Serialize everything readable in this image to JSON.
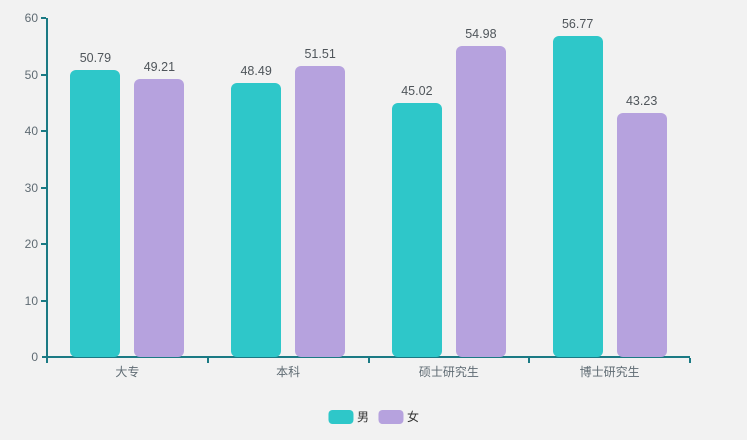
{
  "background_color": "#f2f2f2",
  "axis_color": "#1b7a84",
  "chart_data": {
    "type": "bar",
    "title": "",
    "xlabel": "",
    "ylabel": "",
    "categories": [
      "大专",
      "本科",
      "硕士研究生",
      "博士研究生"
    ],
    "series": [
      {
        "name": "男",
        "color": "#2ec7c9",
        "values": [
          50.79,
          48.49,
          45.02,
          56.77
        ]
      },
      {
        "name": "女",
        "color": "#b6a2de",
        "values": [
          49.21,
          51.51,
          54.98,
          43.23
        ]
      }
    ],
    "value_labels": [
      [
        "50.79",
        "48.49",
        "45.02",
        "56.77"
      ],
      [
        "49.21",
        "51.51",
        "54.98",
        "43.23"
      ]
    ],
    "ylim": [
      0,
      60
    ],
    "yticks": [
      "0",
      "10",
      "20",
      "30",
      "40",
      "50",
      "60"
    ],
    "grid": false,
    "legend_position": "bottom-center",
    "legend": [
      {
        "label": "男",
        "color": "#2ec7c9"
      },
      {
        "label": "女",
        "color": "#b6a2de"
      }
    ]
  }
}
